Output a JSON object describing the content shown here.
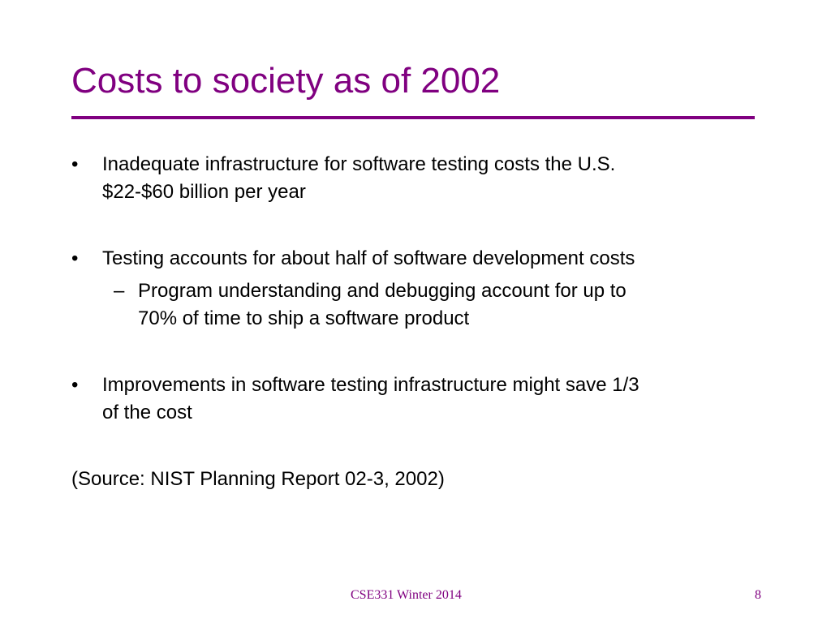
{
  "slide": {
    "title": "Costs to society as of 2002",
    "bullet_marker": "•",
    "sub_marker": "–",
    "bullets": [
      {
        "line1": "Inadequate infrastructure for software testing costs the U.S.",
        "line2": "$22-$60 billion per year"
      },
      {
        "line1": "Testing accounts for about half of software development costs",
        "sub": {
          "line1": "Program understanding and debugging account for up to",
          "line2": "70% of time to ship a software product"
        }
      },
      {
        "line1": "Improvements in software testing infrastructure might save 1/3",
        "line2": "of the cost"
      }
    ],
    "source": "(Source: NIST Planning Report 02-3, 2002)",
    "footer": {
      "course": "CSE331 Winter 2014",
      "page_number": "8"
    },
    "colors": {
      "accent": "#800080",
      "text": "#000000",
      "background": "#ffffff"
    }
  }
}
